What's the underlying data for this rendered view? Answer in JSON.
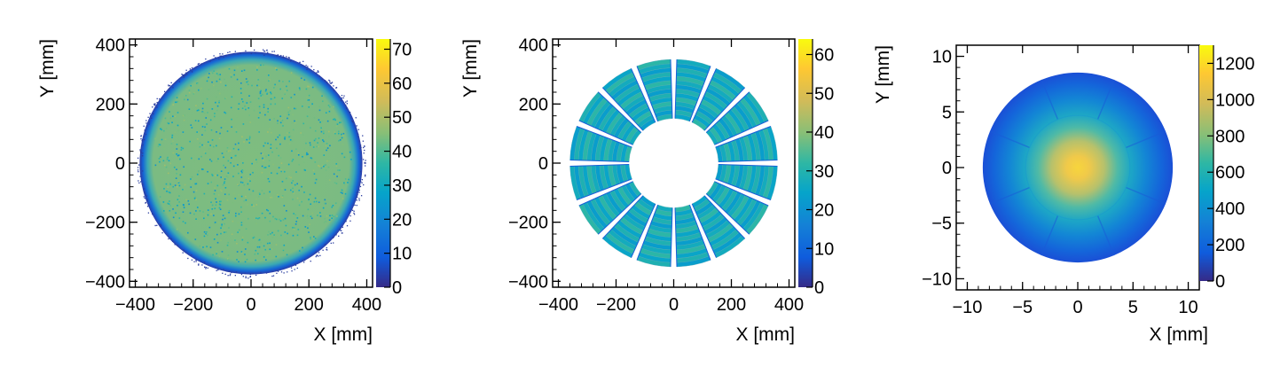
{
  "chart_data": [
    {
      "type": "heatmap",
      "description_shape": "filled-disk",
      "xlabel": "X [mm]",
      "ylabel": "Y [mm]",
      "xlim": [
        -420,
        420
      ],
      "ylim": [
        -420,
        420
      ],
      "xticks": [
        -400,
        -200,
        0,
        200,
        400
      ],
      "xtick_labels": [
        "−400",
        "−200",
        "0",
        "200",
        "400"
      ],
      "yticks": [
        -400,
        -200,
        0,
        200,
        400
      ],
      "ytick_labels": [
        "−400",
        "−200",
        "0",
        "200",
        "400"
      ],
      "z_range": [
        0,
        73
      ],
      "z_ticks": [
        0,
        10,
        20,
        30,
        40,
        50,
        60,
        70
      ],
      "z_tick_labels": [
        "0",
        "10",
        "20",
        "30",
        "40",
        "50",
        "60",
        "70"
      ],
      "disk_radius": 385,
      "typical_value": 35,
      "edge_value": 5
    },
    {
      "type": "heatmap",
      "description_shape": "segmented-annulus",
      "xlabel": "X [mm]",
      "ylabel": "Y [mm]",
      "xlim": [
        -420,
        420
      ],
      "ylim": [
        -420,
        420
      ],
      "xticks": [
        -400,
        -200,
        0,
        200,
        400
      ],
      "xtick_labels": [
        "−400",
        "−200",
        "0",
        "200",
        "400"
      ],
      "yticks": [
        -400,
        -200,
        0,
        200,
        400
      ],
      "ytick_labels": [
        "−400",
        "−200",
        "0",
        "200",
        "400"
      ],
      "z_range": [
        0,
        64
      ],
      "z_ticks": [
        0,
        10,
        20,
        30,
        40,
        50,
        60
      ],
      "z_tick_labels": [
        "0",
        "10",
        "20",
        "30",
        "40",
        "50",
        "60"
      ],
      "inner_radius": 155,
      "outer_radius": 360,
      "segments": 16,
      "typical_value": 27
    },
    {
      "type": "heatmap",
      "description_shape": "radial-peak",
      "xlabel": "X [mm]",
      "ylabel": "Y [mm]",
      "xlim": [
        -11,
        11
      ],
      "ylim": [
        -11,
        11
      ],
      "xticks": [
        -10,
        -5,
        0,
        5,
        10
      ],
      "xtick_labels": [
        "−10",
        "−5",
        "0",
        "5",
        "10"
      ],
      "yticks": [
        -10,
        -5,
        0,
        5,
        10
      ],
      "ytick_labels": [
        "−10",
        "−5",
        "0",
        "5",
        "10"
      ],
      "z_range": [
        0,
        1300
      ],
      "z_ticks": [
        0,
        200,
        400,
        600,
        800,
        1000,
        1200
      ],
      "z_tick_labels": [
        "0",
        "200",
        "400",
        "600",
        "800",
        "1000",
        "1200"
      ],
      "disk_radius": 8.6,
      "peak_value": 1200,
      "edge_value": 60
    }
  ]
}
